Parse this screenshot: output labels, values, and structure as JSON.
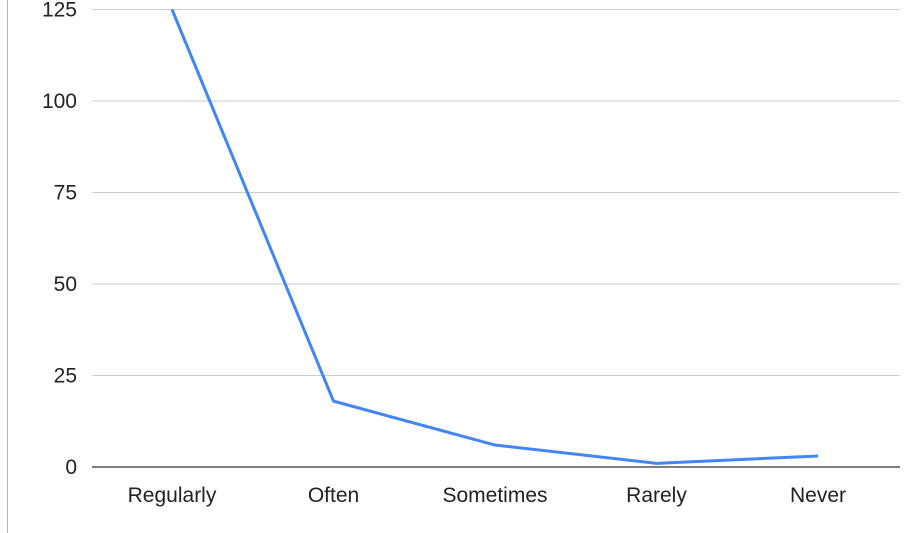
{
  "chart_data": {
    "type": "line",
    "title": "",
    "xlabel": "",
    "ylabel": "",
    "categories": [
      "Regularly",
      "Often",
      "Sometimes",
      "Rarely",
      "Never"
    ],
    "series": [
      {
        "values": [
          125,
          18,
          6,
          1,
          3
        ],
        "color": "#4285f4"
      }
    ],
    "ylim": [
      0,
      125
    ],
    "yticks": [
      0,
      25,
      50,
      75,
      100,
      125
    ],
    "grid": true,
    "legend": "none",
    "colors": {
      "line": "#4285f4",
      "grid": "#cccccc",
      "baseline": "#333333",
      "text": "#222222"
    }
  }
}
